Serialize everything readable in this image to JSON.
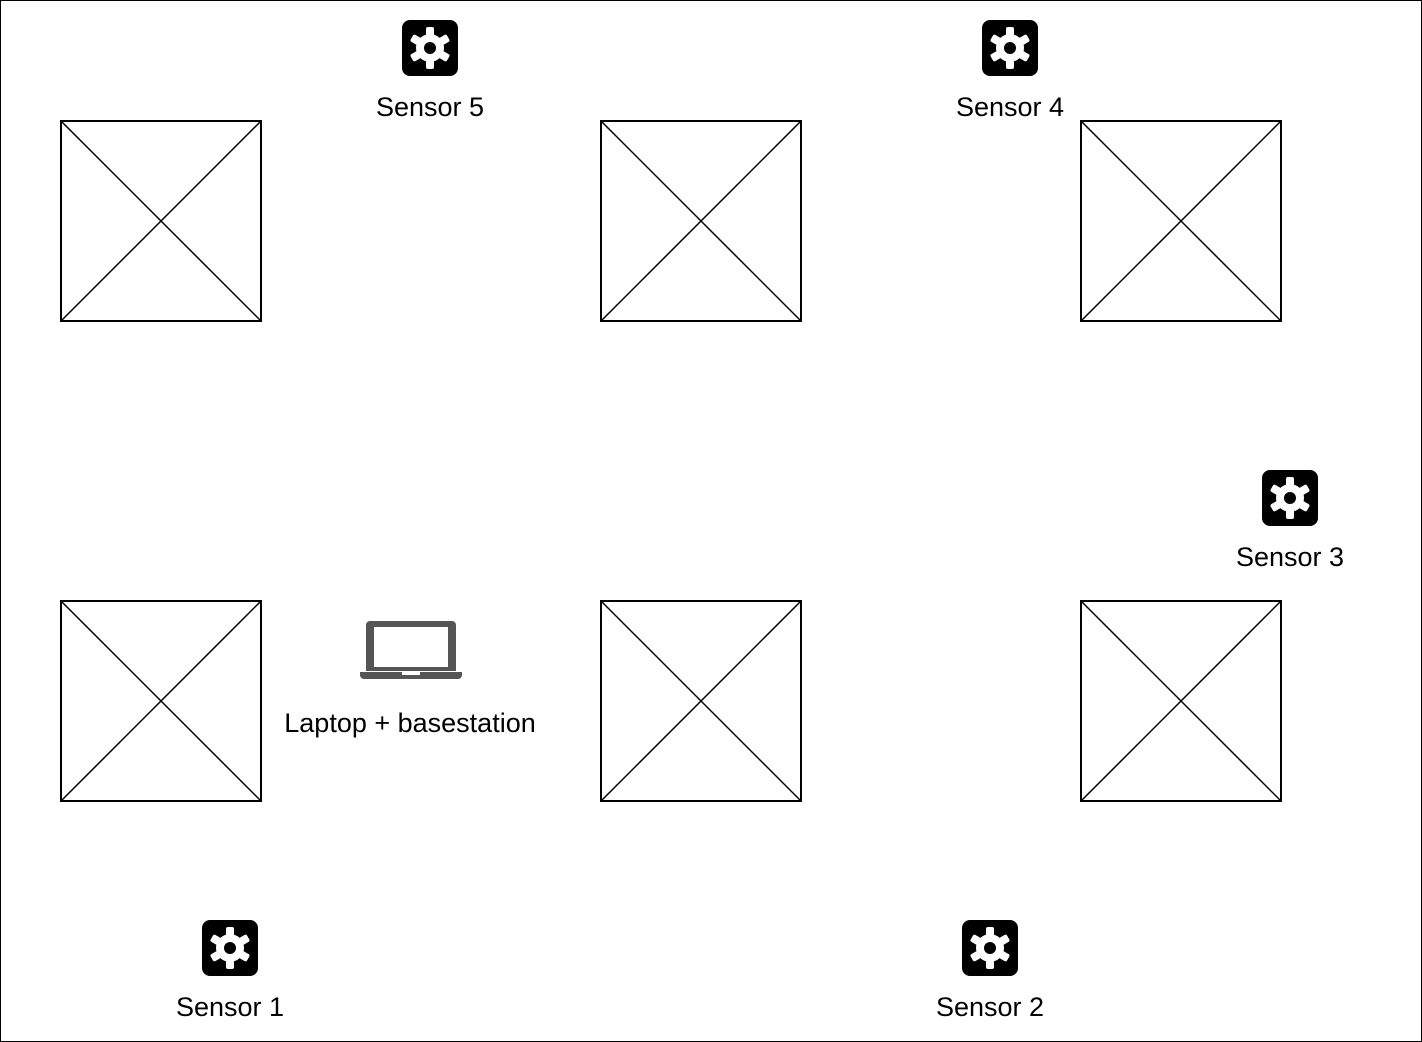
{
  "diagram": {
    "placeholders": [
      {
        "id": "placeholder-1"
      },
      {
        "id": "placeholder-2"
      },
      {
        "id": "placeholder-3"
      },
      {
        "id": "placeholder-4"
      },
      {
        "id": "placeholder-5"
      },
      {
        "id": "placeholder-6"
      }
    ],
    "sensors": [
      {
        "label": "Sensor 5",
        "icon": "gear-icon"
      },
      {
        "label": "Sensor 4",
        "icon": "gear-icon"
      },
      {
        "label": "Sensor 3",
        "icon": "gear-icon"
      },
      {
        "label": "Sensor 1",
        "icon": "gear-icon"
      },
      {
        "label": "Sensor 2",
        "icon": "gear-icon"
      }
    ],
    "laptop": {
      "label": "Laptop + basestation",
      "icon": "laptop-icon",
      "color": "#555555"
    },
    "colors": {
      "icon_background": "#000000",
      "icon_foreground": "#ffffff",
      "stroke": "#000000"
    }
  }
}
